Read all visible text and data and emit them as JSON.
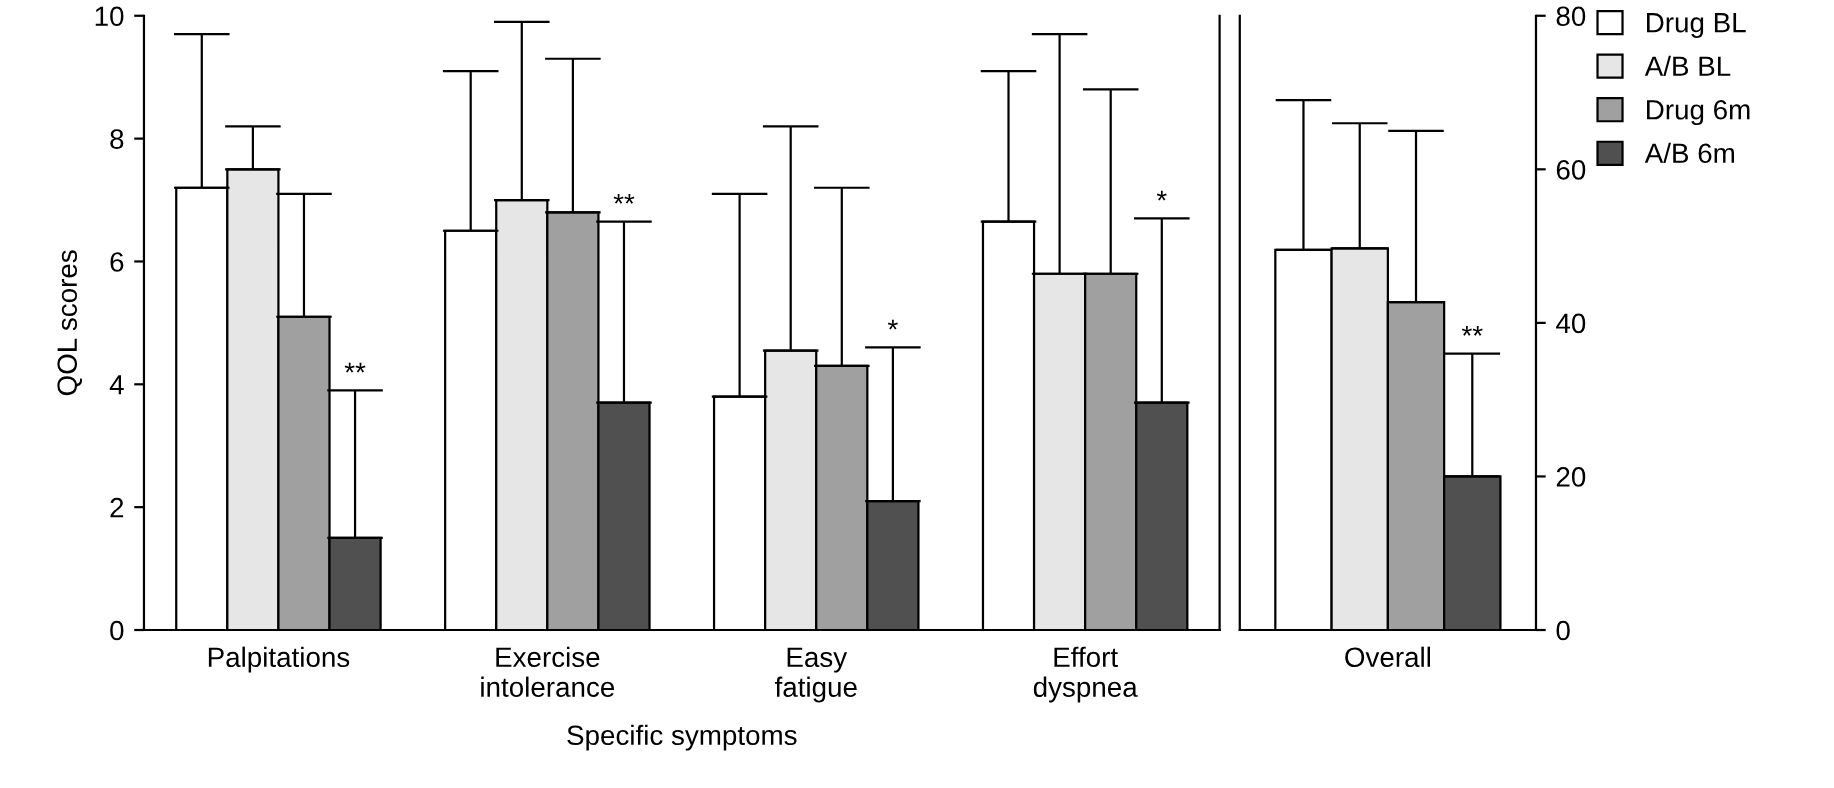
{
  "chart_data": [
    {
      "type": "bar",
      "categories": [
        "Palpitations",
        "Exercise\nintolerance",
        "Easy\nfatigue",
        "Effort\ndyspnea"
      ],
      "xlabel": "Specific symptoms",
      "ylabel": "QOL scores",
      "ylim": [
        0,
        10
      ],
      "yticks": [
        0,
        2,
        4,
        6,
        8,
        10
      ],
      "grid": false,
      "legend": "right",
      "series": [
        {
          "name": "Drug BL",
          "color": "#ffffff",
          "values": [
            7.2,
            6.5,
            3.8,
            6.65
          ],
          "errors": [
            [
              7.2,
              9.7
            ],
            [
              6.5,
              9.1
            ],
            [
              3.8,
              7.1
            ],
            [
              6.65,
              9.1
            ]
          ]
        },
        {
          "name": "A/B BL",
          "color": "#e6e6e6",
          "values": [
            7.5,
            7.0,
            4.55,
            5.8
          ],
          "errors": [
            [
              7.5,
              8.2
            ],
            [
              7.0,
              9.9
            ],
            [
              4.55,
              8.2
            ],
            [
              5.8,
              9.7
            ]
          ]
        },
        {
          "name": "Drug 6m",
          "color": "#a0a0a0",
          "values": [
            5.1,
            6.8,
            4.3,
            5.8
          ],
          "errors": [
            [
              5.1,
              7.1
            ],
            [
              6.8,
              9.3
            ],
            [
              4.3,
              7.2
            ],
            [
              5.8,
              8.8
            ]
          ]
        },
        {
          "name": "A/B 6m",
          "color": "#505050",
          "values": [
            1.5,
            3.7,
            2.1,
            3.7
          ],
          "errors": [
            [
              1.5,
              3.9
            ],
            [
              3.7,
              6.65
            ],
            [
              2.1,
              4.6
            ],
            [
              3.7,
              6.7
            ]
          ]
        }
      ],
      "annotations": [
        "**",
        "**",
        "*",
        "*"
      ]
    },
    {
      "type": "bar",
      "categories": [
        "Overall"
      ],
      "ylim": [
        0,
        80
      ],
      "yticks": [
        0,
        20,
        40,
        60,
        80
      ],
      "grid": false,
      "series": [
        {
          "color": "#ffffff",
          "values": [
            49.5
          ],
          "errors": [
            [
              49.5,
              69
            ]
          ]
        },
        {
          "color": "#e6e6e6",
          "values": [
            49.7
          ],
          "errors": [
            [
              49.7,
              66
            ]
          ]
        },
        {
          "color": "#a0a0a0",
          "values": [
            42.7
          ],
          "errors": [
            [
              42.7,
              65
            ]
          ]
        },
        {
          "color": "#505050",
          "values": [
            20
          ],
          "errors": [
            [
              20,
              36
            ]
          ]
        }
      ],
      "annotations": [
        "**"
      ]
    }
  ]
}
